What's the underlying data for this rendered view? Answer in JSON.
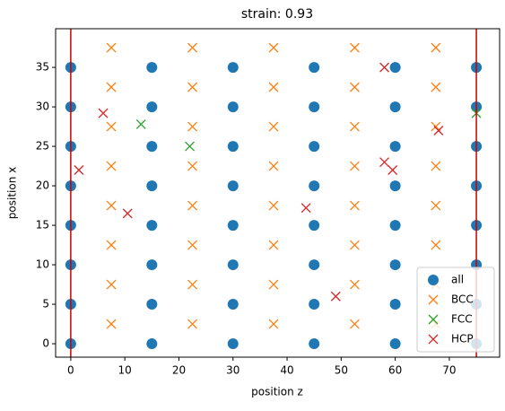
{
  "chart_data": {
    "type": "scatter",
    "title": "strain: 0.93",
    "x_label": "position z",
    "y_label": "position x",
    "xlim": [
      -2.8,
      79.3
    ],
    "ylim": [
      -1.7,
      39.9
    ],
    "xticks": [
      0,
      10,
      20,
      30,
      40,
      50,
      60,
      70
    ],
    "yticks": [
      0,
      5,
      10,
      15,
      20,
      25,
      30,
      35
    ],
    "vlines": [
      0,
      75
    ],
    "vline_color": "#cc0000",
    "legend": "lower right",
    "series": [
      {
        "name": "all",
        "color": "#1f77b4",
        "marker": "o",
        "x": [
          0,
          15,
          30,
          45,
          60,
          75,
          0,
          15,
          30,
          45,
          60,
          75,
          0,
          15,
          30,
          45,
          60,
          75,
          0,
          15,
          30,
          45,
          60,
          75,
          0,
          15,
          30,
          45,
          60,
          75,
          0,
          15,
          30,
          45,
          60,
          75,
          0,
          15,
          30,
          45,
          60,
          75,
          0,
          15,
          30,
          45,
          60,
          75
        ],
        "y": [
          0,
          0,
          0,
          0,
          0,
          0,
          5,
          5,
          5,
          5,
          5,
          5,
          10,
          10,
          10,
          10,
          10,
          10,
          15,
          15,
          15,
          15,
          15,
          15,
          20,
          20,
          20,
          20,
          20,
          20,
          25,
          25,
          25,
          25,
          25,
          25,
          30,
          30,
          30,
          30,
          30,
          30,
          35,
          35,
          35,
          35,
          35,
          35
        ]
      },
      {
        "name": "BCC",
        "color": "#ff7f0e",
        "marker": "x",
        "x": [
          7.5,
          22.5,
          37.5,
          52.5,
          67.5,
          7.5,
          22.5,
          37.5,
          52.5,
          67.5,
          7.5,
          22.5,
          37.5,
          52.5,
          67.5,
          7.5,
          22.5,
          37.5,
          52.5,
          67.5,
          7.5,
          22.5,
          37.5,
          52.5,
          67.5,
          7.5,
          22.5,
          37.5,
          52.5,
          67.5,
          7.5,
          22.5,
          37.5,
          52.5,
          67.5,
          7.5,
          22.5,
          37.5,
          52.5,
          67.5
        ],
        "y": [
          2.5,
          2.5,
          2.5,
          2.5,
          2.5,
          7.5,
          7.5,
          7.5,
          7.5,
          7.5,
          12.5,
          12.5,
          12.5,
          12.5,
          12.5,
          17.5,
          17.5,
          17.5,
          17.5,
          17.5,
          22.5,
          22.5,
          22.5,
          22.5,
          22.5,
          27.5,
          27.5,
          27.5,
          27.5,
          27.5,
          32.5,
          32.5,
          32.5,
          32.5,
          32.5,
          37.5,
          37.5,
          37.5,
          37.5,
          37.5
        ]
      },
      {
        "name": "FCC",
        "color": "#2ca02c",
        "marker": "x",
        "x": [
          13,
          22,
          75
        ],
        "y": [
          27.8,
          25,
          29.2
        ]
      },
      {
        "name": "HCP",
        "color": "#d62728",
        "marker": "x",
        "x": [
          1.5,
          6,
          10.5,
          43.5,
          49,
          58,
          58,
          59.5,
          68
        ],
        "y": [
          22,
          29.2,
          16.5,
          17.2,
          6,
          35,
          23,
          22,
          27
        ]
      }
    ]
  }
}
